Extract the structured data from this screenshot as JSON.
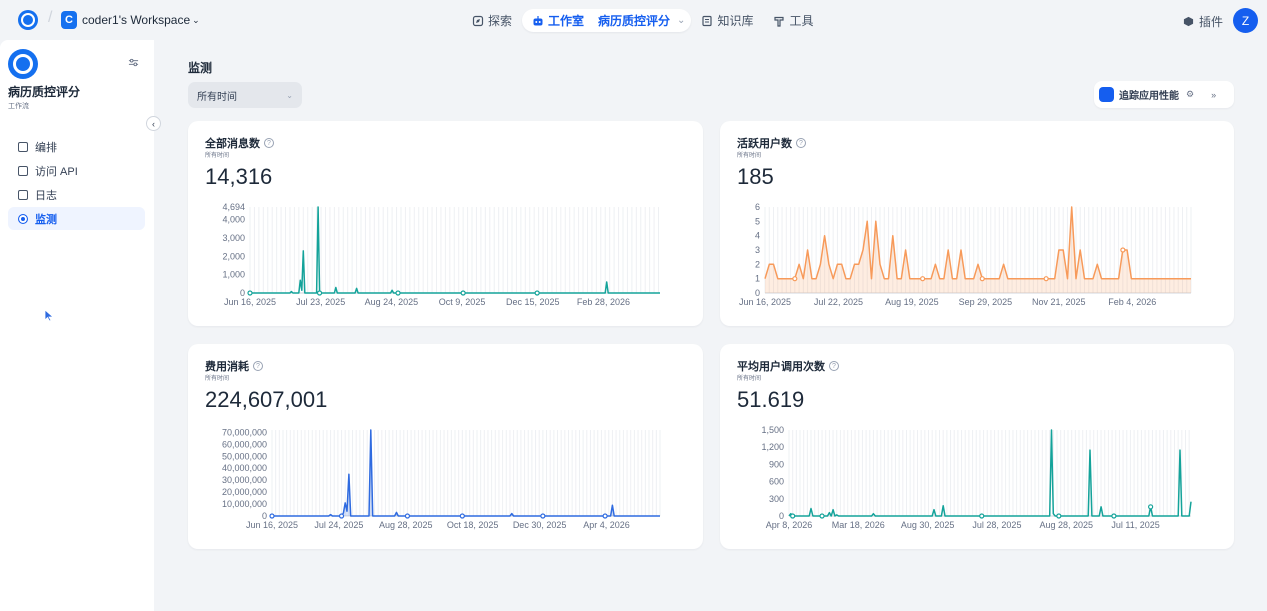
{
  "topbar": {
    "workspace_letter": "C",
    "workspace_name": "coder1's Workspace",
    "nav": {
      "explore": "探索",
      "studio": "工作室",
      "current_app": "病历质控评分",
      "knowledge": "知识库",
      "tools": "工具"
    },
    "plugins": "插件",
    "avatar_letter": "Z"
  },
  "sidebar": {
    "app_name": "病历质控评分",
    "app_type": "工作流",
    "items": [
      {
        "label": "编排",
        "icon": "layout-icon"
      },
      {
        "label": "访问 API",
        "icon": "terminal-icon"
      },
      {
        "label": "日志",
        "icon": "file-list-icon"
      },
      {
        "label": "监测",
        "icon": "monitor-icon",
        "active": true
      }
    ]
  },
  "main": {
    "title": "监测",
    "period": "所有时间",
    "tracing_label": "追踪应用性能"
  },
  "cards": [
    {
      "title": "全部消息数",
      "subtitle": "所有时间",
      "value": "14,316"
    },
    {
      "title": "活跃用户数",
      "subtitle": "所有时间",
      "value": "185"
    },
    {
      "title": "费用消耗",
      "subtitle": "所有时间",
      "value": "224,607,001"
    },
    {
      "title": "平均用户调用次数",
      "subtitle": "所有时间",
      "value": "51.619"
    }
  ],
  "chart_data": [
    {
      "type": "line",
      "color": "#14a39a",
      "fill": false,
      "y_ticks": [
        "0",
        "1,000",
        "2,000",
        "3,000",
        "4,000",
        "4,694"
      ],
      "ylim": [
        0,
        4694
      ],
      "x_ticks": [
        "Jun 16, 2025",
        "Jul 23, 2025",
        "Aug 24, 2025",
        "Oct 9, 2025",
        "Dec 15, 2025",
        "Feb 28, 2026"
      ],
      "values": [
        0,
        0,
        0,
        0,
        0,
        0,
        0,
        0,
        0,
        0,
        0,
        0,
        0,
        0,
        0,
        0,
        0,
        0,
        0,
        0,
        0,
        0,
        0,
        0,
        0,
        0,
        0,
        0,
        80,
        0,
        0,
        0,
        0,
        0,
        700,
        150,
        2300,
        0,
        0,
        0,
        0,
        0,
        0,
        0,
        0,
        0,
        4694,
        0,
        0,
        0,
        0,
        0,
        0,
        0,
        0,
        0,
        0,
        0,
        300,
        0,
        0,
        0,
        0,
        0,
        0,
        0,
        0,
        0,
        0,
        0,
        0,
        0,
        250,
        0,
        0,
        0,
        0,
        0,
        0,
        0,
        0,
        0,
        0,
        0,
        0,
        0,
        0,
        0,
        0,
        0,
        0,
        0,
        0,
        0,
        0,
        0,
        150,
        0,
        0,
        0,
        0,
        0,
        0,
        0,
        0,
        0,
        0,
        0,
        0,
        0,
        0,
        0,
        0,
        0,
        0,
        0,
        0,
        0,
        0,
        0,
        0,
        0,
        0,
        0,
        0,
        0,
        0,
        0,
        0,
        0,
        0,
        0,
        0,
        0,
        0,
        0,
        0,
        0,
        0,
        0,
        0,
        0,
        0,
        0,
        0,
        0,
        0,
        0,
        0,
        0,
        0,
        0,
        0,
        0,
        0,
        0,
        0,
        0,
        0,
        0,
        0,
        0,
        0,
        0,
        0,
        0,
        0,
        0,
        0,
        0,
        0,
        0,
        0,
        0,
        0,
        0,
        0,
        0,
        0,
        0,
        0,
        0,
        0,
        0,
        0,
        0,
        0,
        0,
        0,
        0,
        0,
        0,
        0,
        0,
        0,
        0,
        0,
        0,
        0,
        0,
        0,
        0,
        0,
        0,
        0,
        0,
        0,
        0,
        0,
        0,
        0,
        0,
        0,
        0,
        0,
        0,
        0,
        0,
        0,
        0,
        0,
        0,
        0,
        0,
        0,
        0,
        0,
        0,
        0,
        0,
        0,
        0,
        0,
        0,
        0,
        0,
        0,
        0,
        0,
        0,
        0,
        600,
        0,
        0,
        0,
        0,
        0,
        0,
        0,
        0,
        0,
        0,
        0,
        0,
        0,
        0,
        0,
        0,
        0,
        0,
        0,
        0,
        0,
        0,
        0,
        0,
        0,
        0,
        0,
        0,
        0,
        0,
        0,
        0,
        0,
        0,
        0,
        0
      ],
      "markers": [
        0,
        0.17,
        0.36,
        0.52,
        0.7
      ]
    },
    {
      "type": "line",
      "color": "#f79a5a",
      "fill": true,
      "y_ticks": [
        "0",
        "1",
        "2",
        "3",
        "4",
        "5",
        "6"
      ],
      "ylim": [
        0,
        6
      ],
      "x_ticks": [
        "Jun 16, 2025",
        "Jul 22, 2025",
        "Aug 19, 2025",
        "Sep 29, 2025",
        "Nov 21, 2025",
        "Feb 4, 2026"
      ],
      "values": [
        1,
        2,
        2,
        1,
        1,
        1,
        1,
        1,
        2,
        1,
        3,
        1,
        1,
        2,
        4,
        2,
        1,
        2,
        2,
        1,
        1,
        2,
        2,
        3,
        5,
        1,
        5,
        2,
        1,
        1,
        4,
        1,
        1,
        3,
        1,
        1,
        1,
        1,
        1,
        1,
        2,
        1,
        1,
        3,
        1,
        1,
        3,
        1,
        1,
        1,
        2,
        1,
        1,
        1,
        1,
        1,
        2,
        1,
        1,
        1,
        1,
        1,
        1,
        1,
        1,
        1,
        1,
        1,
        1,
        3,
        3,
        1,
        6,
        1,
        3,
        1,
        1,
        1,
        2,
        1,
        1,
        1,
        1,
        1,
        3,
        3,
        1,
        1,
        1,
        1,
        1,
        1,
        1,
        1,
        1,
        1,
        1,
        1,
        1,
        1,
        1
      ],
      "markers": [
        0.07,
        0.37,
        0.51,
        0.66,
        0.84
      ]
    },
    {
      "type": "area",
      "color": "#2f6be0",
      "fill": true,
      "y_ticks": [
        "0",
        "10,000,000",
        "20,000,000",
        "30,000,000",
        "40,000,000",
        "50,000,000",
        "60,000,000",
        "70,000,000"
      ],
      "ylim": [
        0,
        72000000
      ],
      "x_ticks": [
        "Jun 16, 2025",
        "Jul 24, 2025",
        "Aug 28, 2025",
        "Oct 18, 2025",
        "Dec 30, 2025",
        "Apr 4, 2026"
      ],
      "values": [
        0,
        0,
        0,
        0,
        0,
        0,
        0,
        0,
        0,
        0,
        0,
        0,
        0,
        0,
        0,
        0,
        0,
        0,
        0,
        0,
        0,
        0,
        0,
        0,
        0,
        0,
        0,
        0,
        0,
        0,
        0,
        0,
        1200000,
        0,
        0,
        0,
        0,
        0,
        0,
        2500000,
        11000000,
        4000000,
        35000000,
        0,
        0,
        0,
        0,
        0,
        0,
        0,
        0,
        0,
        0,
        0,
        72000000,
        0,
        0,
        0,
        0,
        0,
        0,
        0,
        0,
        0,
        0,
        0,
        0,
        0,
        3000000,
        0,
        0,
        0,
        0,
        0,
        0,
        0,
        0,
        0,
        0,
        0,
        0,
        0,
        0,
        0,
        0,
        0,
        0,
        0,
        0,
        0,
        0,
        0,
        0,
        0,
        0,
        0,
        0,
        0,
        0,
        0,
        0,
        0,
        0,
        0,
        0,
        0,
        0,
        0,
        0,
        0,
        0,
        0,
        0,
        0,
        0,
        0,
        0,
        0,
        0,
        0,
        0,
        0,
        0,
        0,
        0,
        0,
        0,
        0,
        0,
        0,
        0,
        2000000,
        0,
        0,
        0,
        0,
        0,
        0,
        0,
        0,
        0,
        0,
        0,
        0,
        0,
        0,
        0,
        0,
        0,
        0,
        0,
        0,
        0,
        0,
        0,
        0,
        0,
        0,
        0,
        0,
        0,
        0,
        0,
        0,
        0,
        0,
        0,
        0,
        0,
        0,
        0,
        0,
        0,
        0,
        0,
        0,
        0,
        0,
        0,
        0,
        0,
        0,
        0,
        0,
        0,
        0,
        9000000,
        0,
        0,
        0,
        0,
        0,
        0,
        0,
        0,
        0,
        0,
        0,
        0,
        0,
        0,
        0,
        0,
        0,
        0,
        0,
        0,
        0,
        0,
        0,
        0,
        0,
        0
      ],
      "markers": [
        0,
        0.18,
        0.35,
        0.49,
        0.7,
        0.86
      ]
    },
    {
      "type": "line",
      "color": "#14a39a",
      "fill": false,
      "y_ticks": [
        "0",
        "300",
        "600",
        "900",
        "1,200",
        "1,500"
      ],
      "ylim": [
        0,
        1500
      ],
      "x_ticks": [
        "Apr 8, 2026",
        "Mar 18, 2026",
        "Aug 30, 2025",
        "Jul 28, 2025",
        "Aug 28, 2025",
        "Jul 11, 2025"
      ],
      "values": [
        0,
        40,
        0,
        0,
        0,
        0,
        0,
        0,
        0,
        0,
        0,
        0,
        130,
        0,
        0,
        0,
        0,
        0,
        0,
        0,
        0,
        0,
        60,
        0,
        110,
        0,
        20,
        0,
        0,
        0,
        0,
        0,
        0,
        0,
        0,
        0,
        0,
        0,
        0,
        0,
        0,
        0,
        0,
        0,
        0,
        0,
        40,
        0,
        0,
        0,
        0,
        0,
        0,
        0,
        0,
        0,
        0,
        0,
        0,
        0,
        0,
        0,
        0,
        0,
        0,
        0,
        0,
        0,
        0,
        0,
        0,
        0,
        0,
        0,
        0,
        0,
        0,
        0,
        0,
        110,
        0,
        0,
        0,
        0,
        180,
        0,
        0,
        0,
        0,
        0,
        0,
        0,
        0,
        0,
        0,
        0,
        0,
        0,
        0,
        0,
        0,
        0,
        0,
        0,
        0,
        0,
        0,
        0,
        0,
        0,
        0,
        0,
        0,
        0,
        0,
        0,
        0,
        0,
        0,
        0,
        0,
        0,
        0,
        0,
        0,
        0,
        0,
        0,
        0,
        0,
        0,
        0,
        0,
        0,
        0,
        0,
        0,
        0,
        0,
        0,
        0,
        0,
        0,
        1500,
        40,
        0,
        0,
        0,
        0,
        0,
        0,
        0,
        0,
        0,
        0,
        0,
        0,
        0,
        0,
        0,
        0,
        0,
        0,
        0,
        1150,
        0,
        0,
        0,
        0,
        0,
        160,
        0,
        0,
        0,
        0,
        0,
        0,
        0,
        0,
        0,
        0,
        0,
        0,
        0,
        0,
        0,
        0,
        0,
        0,
        0,
        0,
        0,
        0,
        0,
        0,
        0,
        0,
        160,
        0,
        0,
        0,
        0,
        0,
        0,
        0,
        0,
        0,
        0,
        0,
        0,
        0,
        0,
        0,
        1150,
        0,
        0,
        0,
        0,
        0,
        250
      ],
      "markers": [
        0.01,
        0.08,
        0.48,
        0.67,
        0.81,
        0.9
      ]
    }
  ]
}
